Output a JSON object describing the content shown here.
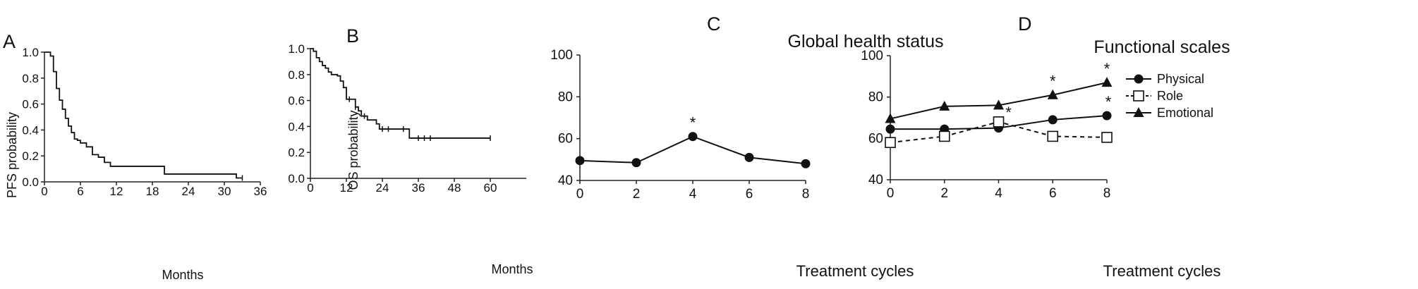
{
  "chart_data": [
    {
      "type": "line",
      "panel_label": "A",
      "title": "",
      "xlabel": "Months",
      "ylabel": "PFS probability",
      "xlim": [
        0,
        36
      ],
      "ylim": [
        0,
        1.0
      ],
      "x_ticks": [
        "0",
        "6",
        "12",
        "18",
        "24",
        "30",
        "36"
      ],
      "y_ticks": [
        "0.0",
        "0.2",
        "0.4",
        "0.6",
        "0.8",
        "1.0"
      ],
      "step": true,
      "series": [
        {
          "x": [
            0,
            1,
            1.5,
            2,
            2.5,
            3,
            3.5,
            4,
            4.5,
            5,
            5.5,
            6,
            7,
            8,
            9,
            10,
            11,
            20,
            32,
            33
          ],
          "y": [
            1.0,
            0.97,
            0.85,
            0.72,
            0.63,
            0.56,
            0.49,
            0.43,
            0.38,
            0.33,
            0.32,
            0.3,
            0.27,
            0.21,
            0.19,
            0.15,
            0.12,
            0.06,
            0.03,
            0.03
          ]
        }
      ],
      "censor_x": [
        33
      ]
    },
    {
      "type": "line",
      "panel_label": "B",
      "title": "",
      "xlabel": "Months",
      "ylabel": "OS probability",
      "xlim": [
        0,
        72
      ],
      "ylim": [
        0,
        1.0
      ],
      "x_ticks": [
        "0",
        "12",
        "24",
        "36",
        "48",
        "60"
      ],
      "y_ticks": [
        "0.0",
        "0.2",
        "0.4",
        "0.6",
        "0.8",
        "1.0"
      ],
      "step": true,
      "series": [
        {
          "x": [
            0,
            1,
            2,
            3,
            4,
            5,
            6,
            7,
            9,
            10,
            11,
            12,
            15,
            16,
            17,
            19,
            22,
            23,
            33,
            60
          ],
          "y": [
            1.0,
            0.98,
            0.93,
            0.9,
            0.87,
            0.85,
            0.82,
            0.8,
            0.79,
            0.75,
            0.7,
            0.61,
            0.55,
            0.52,
            0.48,
            0.45,
            0.42,
            0.38,
            0.31,
            0.31
          ]
        }
      ],
      "censor_x": [
        13,
        15,
        18,
        24,
        26,
        31,
        36,
        38,
        40,
        60
      ]
    },
    {
      "type": "line",
      "panel_label": "C",
      "title": "Global health status",
      "xlabel": "Treatment cycles",
      "ylabel": "",
      "xlim": [
        0,
        8
      ],
      "ylim": [
        40,
        100
      ],
      "x_ticks": [
        "0",
        "2",
        "4",
        "6",
        "8"
      ],
      "y_ticks": [
        "40",
        "60",
        "80",
        "100"
      ],
      "series": [
        {
          "x": [
            0,
            2,
            4,
            6,
            8
          ],
          "values": [
            49.5,
            48.5,
            61,
            51,
            48
          ]
        }
      ],
      "annotations": [
        {
          "x": 4,
          "text": "*"
        }
      ]
    },
    {
      "type": "line",
      "panel_label": "D",
      "title": "Functional scales",
      "xlabel": "Treatment cycles",
      "ylabel": "",
      "xlim": [
        0,
        8
      ],
      "ylim": [
        40,
        100
      ],
      "x_ticks": [
        "0",
        "2",
        "4",
        "6",
        "8"
      ],
      "y_ticks": [
        "40",
        "60",
        "80",
        "100"
      ],
      "legend_position": "top-right",
      "series": [
        {
          "name": "Physical",
          "marker": "filled-circle",
          "dash": "solid",
          "x": [
            0,
            2,
            4,
            6,
            8
          ],
          "values": [
            64.5,
            64.5,
            65,
            69,
            71
          ]
        },
        {
          "name": "Role",
          "marker": "open-square",
          "dash": "dashed",
          "x": [
            0,
            2,
            4,
            6,
            8
          ],
          "values": [
            58,
            61,
            68,
            61,
            60.5
          ]
        },
        {
          "name": "Emotional",
          "marker": "filled-triangle",
          "dash": "solid",
          "x": [
            0,
            2,
            4,
            6,
            8
          ],
          "values": [
            69.5,
            75.5,
            76,
            81,
            87
          ]
        }
      ],
      "annotations": [
        {
          "series": "Role",
          "x": 4,
          "text": "*"
        },
        {
          "series": "Emotional",
          "x": 6,
          "text": "*"
        },
        {
          "series": "Emotional",
          "x": 8,
          "text": "*"
        },
        {
          "series": "Physical",
          "x": 8,
          "text": "*"
        }
      ]
    }
  ]
}
